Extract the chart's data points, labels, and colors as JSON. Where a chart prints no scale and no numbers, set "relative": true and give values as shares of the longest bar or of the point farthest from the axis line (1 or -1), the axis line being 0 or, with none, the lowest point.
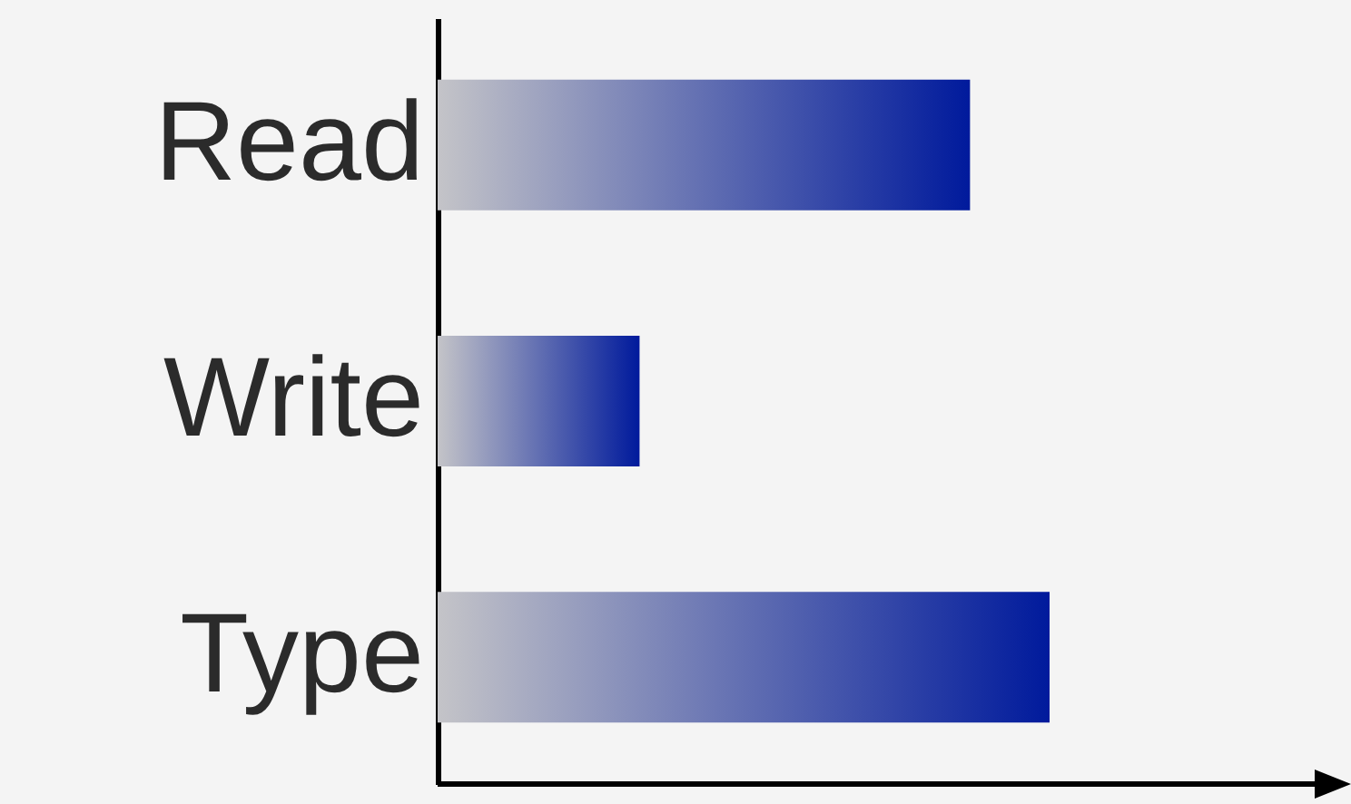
{
  "chart_data": {
    "type": "bar",
    "orientation": "horizontal",
    "relative": true,
    "categories": [
      "Read",
      "Write",
      "Type"
    ],
    "values": [
      0.87,
      0.33,
      1
    ],
    "color": "#001a9c"
  }
}
